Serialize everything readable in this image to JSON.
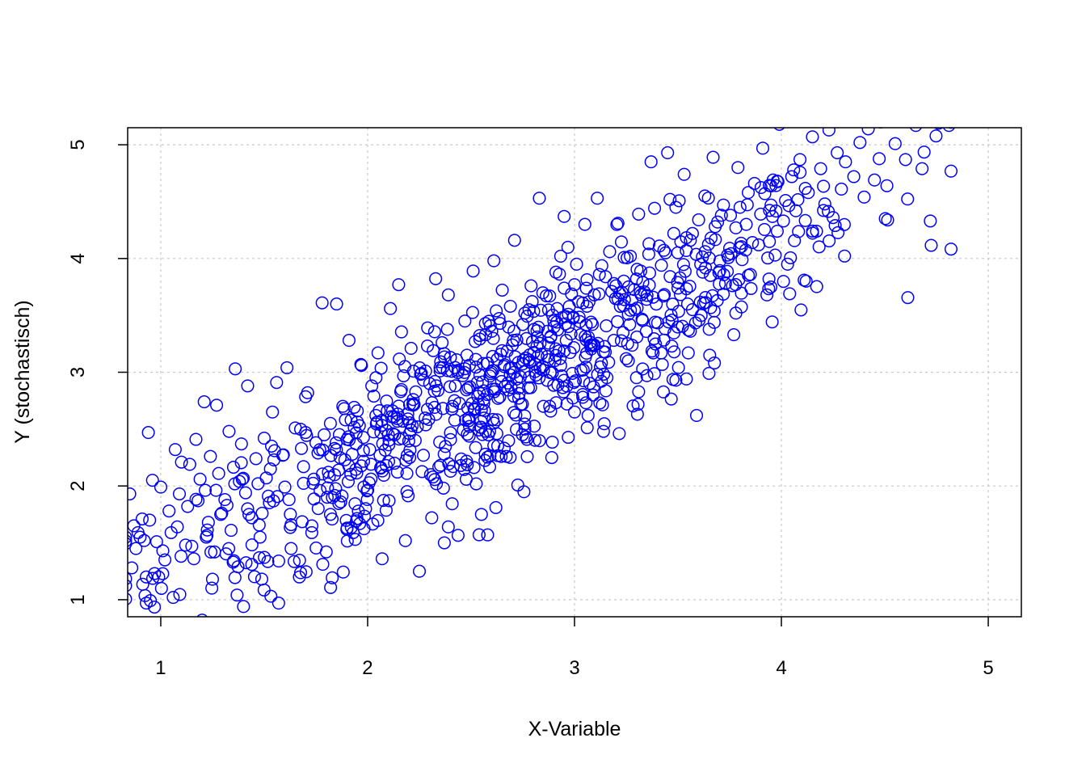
{
  "chart_data": {
    "type": "scatter",
    "title": "",
    "xlabel": "X-Variable",
    "ylabel": "Y (stochastisch)",
    "xlim": [
      0.84,
      5.16
    ],
    "ylim": [
      0.85,
      5.15
    ],
    "x_ticks": [
      "1",
      "2",
      "3",
      "4",
      "5"
    ],
    "y_ticks": [
      "1",
      "2",
      "3",
      "4",
      "5"
    ],
    "grid": true,
    "legend": "none",
    "marker": "open-circle",
    "point_color": "#0000ff",
    "grid_color": "#c8c8c8",
    "n_points": 1000,
    "x_range": [
      0.83,
      4.82
    ],
    "y_range": [
      0.8,
      5.2
    ],
    "trend_slope": 0.95,
    "trend_intercept": 0.3,
    "residual_sd": 0.4,
    "points": [
      [
        0.85,
        1.93
      ],
      [
        0.87,
        1.65
      ],
      [
        0.88,
        1.45
      ],
      [
        0.9,
        1.55
      ],
      [
        0.92,
        1.52
      ],
      [
        0.94,
        2.47
      ],
      [
        0.96,
        2.05
      ],
      [
        0.97,
        1.23
      ],
      [
        0.99,
        1.2
      ],
      [
        1.0,
        1.99
      ],
      [
        1.02,
        1.35
      ],
      [
        1.04,
        1.78
      ],
      [
        1.06,
        1.02
      ],
      [
        1.07,
        2.32
      ],
      [
        1.08,
        1.64
      ],
      [
        1.1,
        2.21
      ],
      [
        1.12,
        1.48
      ],
      [
        1.14,
        2.19
      ],
      [
        1.16,
        1.36
      ],
      [
        1.18,
        1.87
      ],
      [
        1.2,
        0.82
      ],
      [
        1.21,
        2.74
      ],
      [
        1.22,
        1.55
      ],
      [
        1.24,
        2.26
      ],
      [
        1.25,
        1.18
      ],
      [
        1.27,
        2.71
      ],
      [
        1.29,
        1.75
      ],
      [
        1.31,
        1.88
      ],
      [
        1.33,
        2.48
      ],
      [
        1.35,
        1.33
      ],
      [
        1.36,
        3.03
      ],
      [
        1.38,
        2.04
      ],
      [
        1.4,
        0.94
      ],
      [
        1.42,
        2.88
      ],
      [
        1.44,
        1.31
      ],
      [
        1.46,
        2.24
      ],
      [
        1.48,
        1.55
      ],
      [
        1.5,
        2.42
      ],
      [
        1.52,
        1.91
      ],
      [
        1.54,
        2.65
      ],
      [
        1.56,
        2.91
      ],
      [
        1.57,
        1.34
      ],
      [
        1.59,
        2.27
      ],
      [
        1.61,
        3.04
      ],
      [
        1.63,
        1.66
      ],
      [
        1.65,
        2.51
      ],
      [
        1.67,
        1.2
      ],
      [
        1.69,
        2.17
      ],
      [
        1.71,
        2.82
      ],
      [
        1.73,
        1.59
      ],
      [
        1.75,
        2.38
      ],
      [
        1.77,
        1.96
      ],
      [
        1.78,
        3.61
      ],
      [
        1.8,
        1.42
      ],
      [
        1.82,
        2.55
      ],
      [
        1.84,
        2.33
      ],
      [
        1.85,
        3.6
      ],
      [
        1.87,
        1.86
      ],
      [
        1.89,
        2.23
      ],
      [
        1.91,
        3.28
      ],
      [
        1.93,
        1.59
      ],
      [
        1.95,
        2.66
      ],
      [
        1.97,
        3.06
      ],
      [
        1.99,
        1.8
      ],
      [
        2.01,
        2.32
      ],
      [
        2.03,
        2.79
      ],
      [
        2.05,
        3.17
      ],
      [
        2.07,
        1.36
      ],
      [
        2.09,
        2.49
      ],
      [
        2.11,
        3.56
      ],
      [
        2.13,
        2.2
      ],
      [
        2.15,
        3.77
      ],
      [
        2.17,
        2.57
      ],
      [
        2.19,
        1.95
      ],
      [
        2.21,
        3.21
      ],
      [
        2.23,
        2.4
      ],
      [
        2.25,
        1.25
      ],
      [
        2.27,
        2.93
      ],
      [
        2.29,
        3.39
      ],
      [
        2.31,
        1.72
      ],
      [
        2.33,
        2.63
      ],
      [
        2.35,
        3.04
      ],
      [
        2.37,
        2.28
      ],
      [
        2.39,
        3.68
      ],
      [
        2.41,
        2.7
      ],
      [
        2.43,
        3.11
      ],
      [
        2.45,
        2.18
      ],
      [
        2.47,
        3.45
      ],
      [
        2.49,
        2.6
      ],
      [
        2.51,
        3.89
      ],
      [
        2.53,
        2.91
      ],
      [
        2.55,
        1.75
      ],
      [
        2.57,
        3.33
      ],
      [
        2.59,
        2.48
      ],
      [
        2.61,
        3.98
      ],
      [
        2.63,
        2.77
      ],
      [
        2.65,
        3.19
      ],
      [
        2.67,
        2.26
      ],
      [
        2.69,
        3.58
      ],
      [
        2.71,
        4.16
      ],
      [
        2.73,
        2.86
      ],
      [
        2.75,
        3.42
      ],
      [
        2.77,
        2.41
      ],
      [
        2.79,
        3.76
      ],
      [
        2.81,
        3.07
      ],
      [
        2.83,
        4.53
      ],
      [
        2.85,
        2.7
      ],
      [
        2.87,
        3.36
      ],
      [
        2.89,
        2.25
      ],
      [
        2.91,
        3.88
      ],
      [
        2.93,
        3.12
      ],
      [
        2.95,
        4.37
      ],
      [
        2.97,
        3.51
      ],
      [
        2.99,
        2.99
      ],
      [
        3.01,
        3.95
      ],
      [
        3.03,
        3.33
      ],
      [
        3.05,
        4.3
      ],
      [
        3.07,
        3.62
      ],
      [
        3.09,
        2.8
      ],
      [
        3.11,
        4.53
      ],
      [
        3.13,
        3.08
      ],
      [
        3.15,
        3.84
      ],
      [
        3.17,
        4.06
      ],
      [
        3.19,
        3.28
      ],
      [
        3.21,
        4.31
      ],
      [
        3.23,
        3.7
      ],
      [
        3.25,
        3.12
      ],
      [
        3.27,
        4.02
      ],
      [
        3.29,
        3.55
      ],
      [
        3.31,
        4.39
      ],
      [
        3.33,
        3.79
      ],
      [
        3.35,
        2.97
      ],
      [
        3.37,
        4.85
      ],
      [
        3.39,
        3.44
      ],
      [
        3.41,
        4.11
      ],
      [
        3.43,
        3.67
      ],
      [
        3.45,
        4.93
      ],
      [
        3.47,
        3.23
      ],
      [
        3.49,
        4.45
      ],
      [
        3.51,
        3.83
      ],
      [
        3.53,
        4.74
      ],
      [
        3.55,
        3.17
      ],
      [
        3.57,
        4.22
      ],
      [
        3.59,
        2.62
      ],
      [
        3.61,
        3.95
      ],
      [
        3.63,
        4.55
      ],
      [
        3.65,
        2.99
      ],
      [
        3.67,
        4.89
      ],
      [
        3.69,
        3.63
      ],
      [
        3.71,
        4.38
      ],
      [
        3.73,
        3.78
      ],
      [
        3.75,
        4.09
      ],
      [
        3.77,
        3.33
      ],
      [
        3.79,
        4.8
      ],
      [
        3.81,
        3.99
      ],
      [
        3.83,
        4.3
      ],
      [
        3.85,
        3.86
      ],
      [
        3.87,
        4.66
      ],
      [
        3.89,
        4.12
      ],
      [
        3.91,
        4.97
      ],
      [
        3.93,
        3.68
      ],
      [
        3.95,
        4.47
      ],
      [
        3.97,
        4.03
      ],
      [
        3.99,
        5.18
      ],
      [
        4.01,
        4.33
      ],
      [
        4.03,
        3.95
      ],
      [
        4.05,
        4.72
      ],
      [
        4.07,
        4.42
      ],
      [
        4.09,
        4.87
      ],
      [
        4.11,
        3.81
      ],
      [
        4.13,
        4.58
      ],
      [
        4.15,
        5.07
      ],
      [
        4.17,
        4.24
      ],
      [
        4.19,
        4.79
      ],
      [
        4.21,
        4.48
      ],
      [
        4.23,
        5.13
      ],
      [
        4.25,
        4.36
      ],
      [
        4.27,
        4.93
      ],
      [
        4.29,
        4.61
      ],
      [
        4.31,
        4.85
      ],
      [
        4.35,
        4.72
      ],
      [
        4.38,
        5.02
      ],
      [
        4.4,
        4.54
      ],
      [
        4.42,
        5.14
      ],
      [
        4.45,
        4.69
      ],
      [
        4.48,
        5.2
      ],
      [
        4.51,
        4.64
      ],
      [
        4.55,
        5.01
      ],
      [
        4.6,
        4.87
      ],
      [
        4.65,
        5.17
      ],
      [
        4.68,
        4.79
      ],
      [
        4.72,
        4.33
      ],
      [
        4.76,
        5.19
      ],
      [
        4.81,
        5.17
      ],
      [
        0.86,
        1.28
      ],
      [
        0.93,
        0.97
      ],
      [
        1.05,
        1.59
      ],
      [
        1.15,
        1.47
      ],
      [
        1.28,
        2.11
      ],
      [
        1.44,
        1.72
      ],
      [
        1.63,
        1.45
      ],
      [
        1.82,
        1.75
      ],
      [
        1.94,
        1.53
      ],
      [
        2.09,
        2.18
      ],
      [
        2.22,
        2.76
      ],
      [
        2.39,
        1.64
      ],
      [
        2.58,
        1.57
      ],
      [
        2.62,
        1.81
      ],
      [
        2.76,
        2.5
      ],
      [
        2.88,
        2.7
      ],
      [
        3.04,
        2.78
      ],
      [
        3.14,
        2.48
      ],
      [
        3.26,
        3.1
      ],
      [
        3.38,
        3.17
      ],
      [
        3.49,
        2.93
      ],
      [
        3.56,
        3.36
      ],
      [
        3.78,
        3.52
      ],
      [
        3.94,
        3.82
      ],
      [
        4.04,
        3.69
      ],
      [
        4.26,
        4.29
      ],
      [
        0.89,
        1.59
      ],
      [
        0.98,
        1.51
      ],
      [
        1.09,
        1.93
      ],
      [
        1.17,
        2.41
      ],
      [
        1.23,
        1.68
      ],
      [
        1.32,
        1.83
      ],
      [
        1.39,
        2.37
      ],
      [
        1.47,
        2.02
      ],
      [
        1.53,
        2.15
      ],
      [
        1.6,
        1.99
      ],
      [
        1.68,
        2.33
      ],
      [
        1.74,
        2.06
      ],
      [
        1.79,
        2.45
      ],
      [
        1.86,
        2.14
      ],
      [
        1.92,
        2.58
      ],
      [
        1.98,
        2.31
      ],
      [
        2.04,
        2.62
      ],
      [
        2.1,
        2.45
      ],
      [
        2.16,
        2.83
      ],
      [
        2.22,
        2.71
      ],
      [
        2.28,
        3.01
      ],
      [
        2.34,
        2.84
      ],
      [
        2.4,
        3.13
      ],
      [
        2.46,
        2.97
      ],
      [
        2.52,
        3.27
      ],
      [
        2.58,
        3.08
      ],
      [
        2.64,
        3.43
      ],
      [
        2.7,
        3.24
      ],
      [
        2.76,
        3.52
      ],
      [
        2.82,
        3.31
      ],
      [
        2.88,
        3.67
      ],
      [
        2.94,
        3.48
      ],
      [
        3.0,
        3.77
      ],
      [
        3.06,
        3.58
      ],
      [
        3.12,
        3.86
      ],
      [
        3.18,
        3.71
      ],
      [
        3.24,
        4.01
      ],
      [
        3.3,
        3.82
      ],
      [
        3.36,
        4.13
      ],
      [
        3.42,
        3.94
      ],
      [
        3.48,
        4.22
      ],
      [
        3.54,
        4.07
      ],
      [
        3.6,
        4.34
      ],
      [
        3.66,
        4.18
      ],
      [
        3.72,
        4.47
      ],
      [
        3.78,
        4.27
      ],
      [
        3.84,
        4.58
      ],
      [
        3.9,
        4.39
      ],
      [
        3.96,
        4.69
      ],
      [
        4.02,
        4.51
      ],
      [
        0.91,
        1.71
      ],
      [
        1.01,
        1.43
      ],
      [
        1.13,
        1.82
      ],
      [
        1.19,
        2.06
      ],
      [
        1.26,
        1.42
      ],
      [
        1.34,
        1.61
      ],
      [
        1.41,
        1.94
      ],
      [
        1.49,
        1.76
      ],
      [
        1.55,
        2.31
      ],
      [
        1.62,
        1.88
      ],
      [
        1.7,
        2.47
      ],
      [
        1.76,
        2.29
      ],
      [
        1.81,
        2.12
      ],
      [
        1.88,
        2.7
      ],
      [
        1.9,
        2.41
      ],
      [
        1.96,
        2.53
      ],
      [
        2.02,
        2.88
      ],
      [
        2.06,
        2.27
      ],
      [
        2.12,
        2.66
      ],
      [
        2.18,
        3.05
      ],
      [
        2.24,
        2.52
      ],
      [
        2.3,
        2.9
      ],
      [
        2.36,
        3.26
      ],
      [
        2.42,
        2.75
      ],
      [
        2.48,
        3.15
      ],
      [
        2.54,
        2.82
      ],
      [
        2.6,
        3.36
      ],
      [
        2.66,
        3.05
      ],
      [
        2.72,
        2.94
      ],
      [
        2.78,
        3.55
      ],
      [
        2.84,
        3.16
      ],
      [
        2.9,
        3.45
      ],
      [
        2.96,
        3.28
      ],
      [
        3.02,
        3.62
      ],
      [
        3.08,
        3.44
      ],
      [
        3.14,
        3.18
      ],
      [
        3.2,
        3.76
      ],
      [
        3.26,
        3.51
      ],
      [
        3.32,
        3.89
      ],
      [
        3.38,
        3.66
      ],
      [
        3.44,
        4.05
      ],
      [
        3.5,
        3.74
      ],
      [
        3.56,
        4.16
      ],
      [
        3.62,
        3.88
      ],
      [
        3.68,
        4.28
      ],
      [
        3.74,
        4.03
      ],
      [
        3.8,
        4.45
      ],
      [
        3.86,
        4.14
      ],
      [
        3.92,
        4.57
      ],
      [
        3.98,
        4.24
      ]
    ]
  }
}
